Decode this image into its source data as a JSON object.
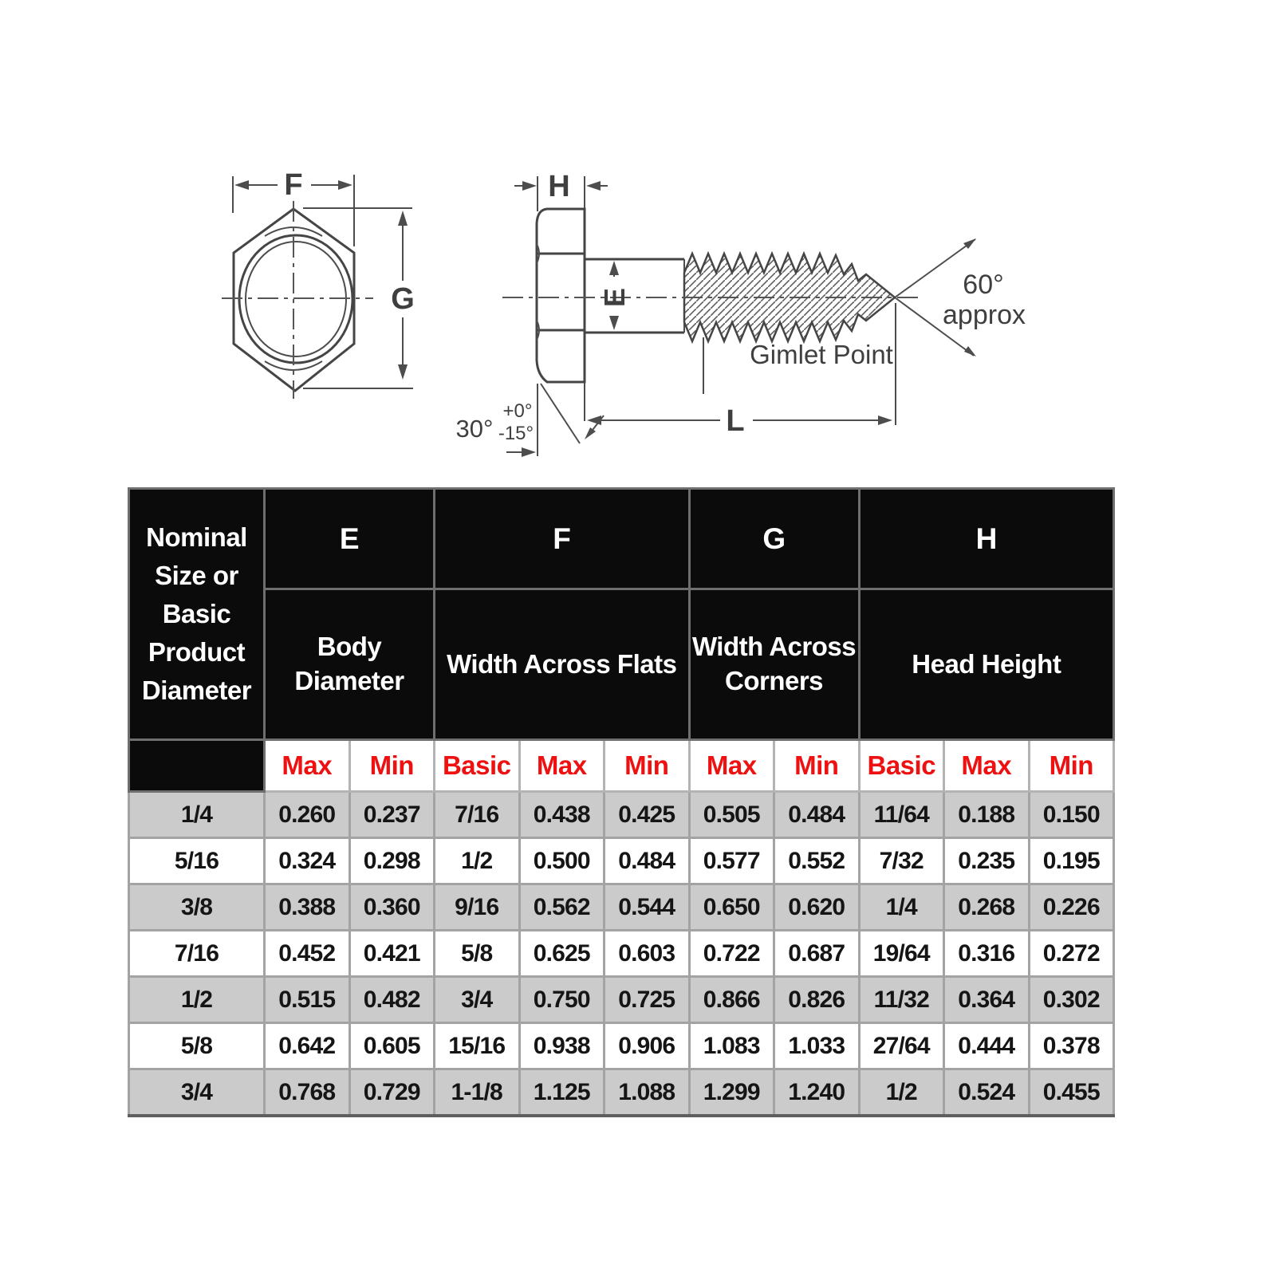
{
  "diagram": {
    "labels": {
      "width_across_flats": "F",
      "width_across_corners": "G",
      "head_height": "H",
      "body_diameter": "E",
      "length": "L",
      "head_angle": "30°",
      "head_angle_tol_plus": "+0°",
      "head_angle_tol_minus": "-15°",
      "point_angle": "60°",
      "point_angle_approx": "approx",
      "point_name": "Gimlet Point"
    }
  },
  "table": {
    "corner_header": "Nominal Size or Basic Product Diameter",
    "groups": [
      {
        "letter": "E",
        "name": "Body Diameter"
      },
      {
        "letter": "F",
        "name": "Width Across Flats"
      },
      {
        "letter": "G",
        "name": "Width Across Corners"
      },
      {
        "letter": "H",
        "name": "Head Height"
      }
    ],
    "sub_headers": [
      "Max",
      "Min",
      "Basic",
      "Max",
      "Min",
      "Max",
      "Min",
      "Basic",
      "Max",
      "Min"
    ],
    "rows": [
      {
        "size": "1/4",
        "values": [
          "0.260",
          "0.237",
          "7/16",
          "0.438",
          "0.425",
          "0.505",
          "0.484",
          "11/64",
          "0.188",
          "0.150"
        ]
      },
      {
        "size": "5/16",
        "values": [
          "0.324",
          "0.298",
          "1/2",
          "0.500",
          "0.484",
          "0.577",
          "0.552",
          "7/32",
          "0.235",
          "0.195"
        ]
      },
      {
        "size": "3/8",
        "values": [
          "0.388",
          "0.360",
          "9/16",
          "0.562",
          "0.544",
          "0.650",
          "0.620",
          "1/4",
          "0.268",
          "0.226"
        ]
      },
      {
        "size": "7/16",
        "values": [
          "0.452",
          "0.421",
          "5/8",
          "0.625",
          "0.603",
          "0.722",
          "0.687",
          "19/64",
          "0.316",
          "0.272"
        ]
      },
      {
        "size": "1/2",
        "values": [
          "0.515",
          "0.482",
          "3/4",
          "0.750",
          "0.725",
          "0.866",
          "0.826",
          "11/32",
          "0.364",
          "0.302"
        ]
      },
      {
        "size": "5/8",
        "values": [
          "0.642",
          "0.605",
          "15/16",
          "0.938",
          "0.906",
          "1.083",
          "1.033",
          "27/64",
          "0.444",
          "0.378"
        ]
      },
      {
        "size": "3/4",
        "values": [
          "0.768",
          "0.729",
          "1-1/8",
          "1.125",
          "1.088",
          "1.299",
          "1.240",
          "1/2",
          "0.524",
          "0.455"
        ]
      }
    ],
    "colors": {
      "header_bg": "#0b0b0b",
      "header_text": "#ffffff",
      "accent_red": "#ee1111",
      "row_alt_bg": "#cbcbcb",
      "row_bg": "#ffffff",
      "grid": "#a3a3a3"
    }
  }
}
